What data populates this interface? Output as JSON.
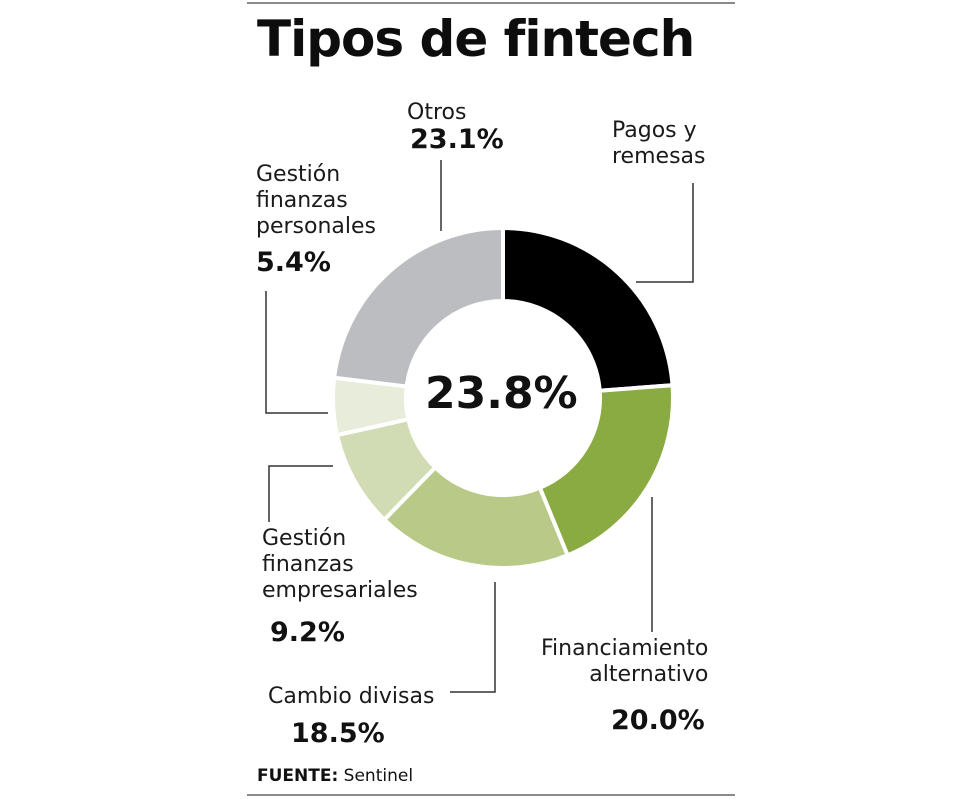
{
  "title": "Tipos de fintech",
  "center_label": "23.8%",
  "source": {
    "label": "FUENTE:",
    "value": "Sentinel"
  },
  "chart_data": {
    "type": "pie",
    "title": "Tipos de fintech",
    "donut": true,
    "categories": [
      "Pagos y remesas",
      "Financiamiento alternativo",
      "Cambio divisas",
      "Gestión finanzas empresariales",
      "Gestión finanzas personales",
      "Otros"
    ],
    "values": [
      23.8,
      20.0,
      18.5,
      9.2,
      5.4,
      23.1
    ],
    "value_labels": [
      "",
      "20.0%",
      "18.5%",
      "9.2%",
      "5.4%",
      "23.1%"
    ],
    "label_lines": [
      [
        "Pagos y",
        "remesas"
      ],
      [
        "Financiamiento",
        "alternativo"
      ],
      [
        "Cambio divisas"
      ],
      [
        "Gestión",
        "finanzas",
        "empresariales"
      ],
      [
        "Gestión",
        "finanzas",
        "personales"
      ],
      [
        "Otros"
      ]
    ],
    "colors": [
      "#000000",
      "#8aab42",
      "#b9c988",
      "#d2dcb4",
      "#e8ecda",
      "#bcbdc0"
    ]
  }
}
